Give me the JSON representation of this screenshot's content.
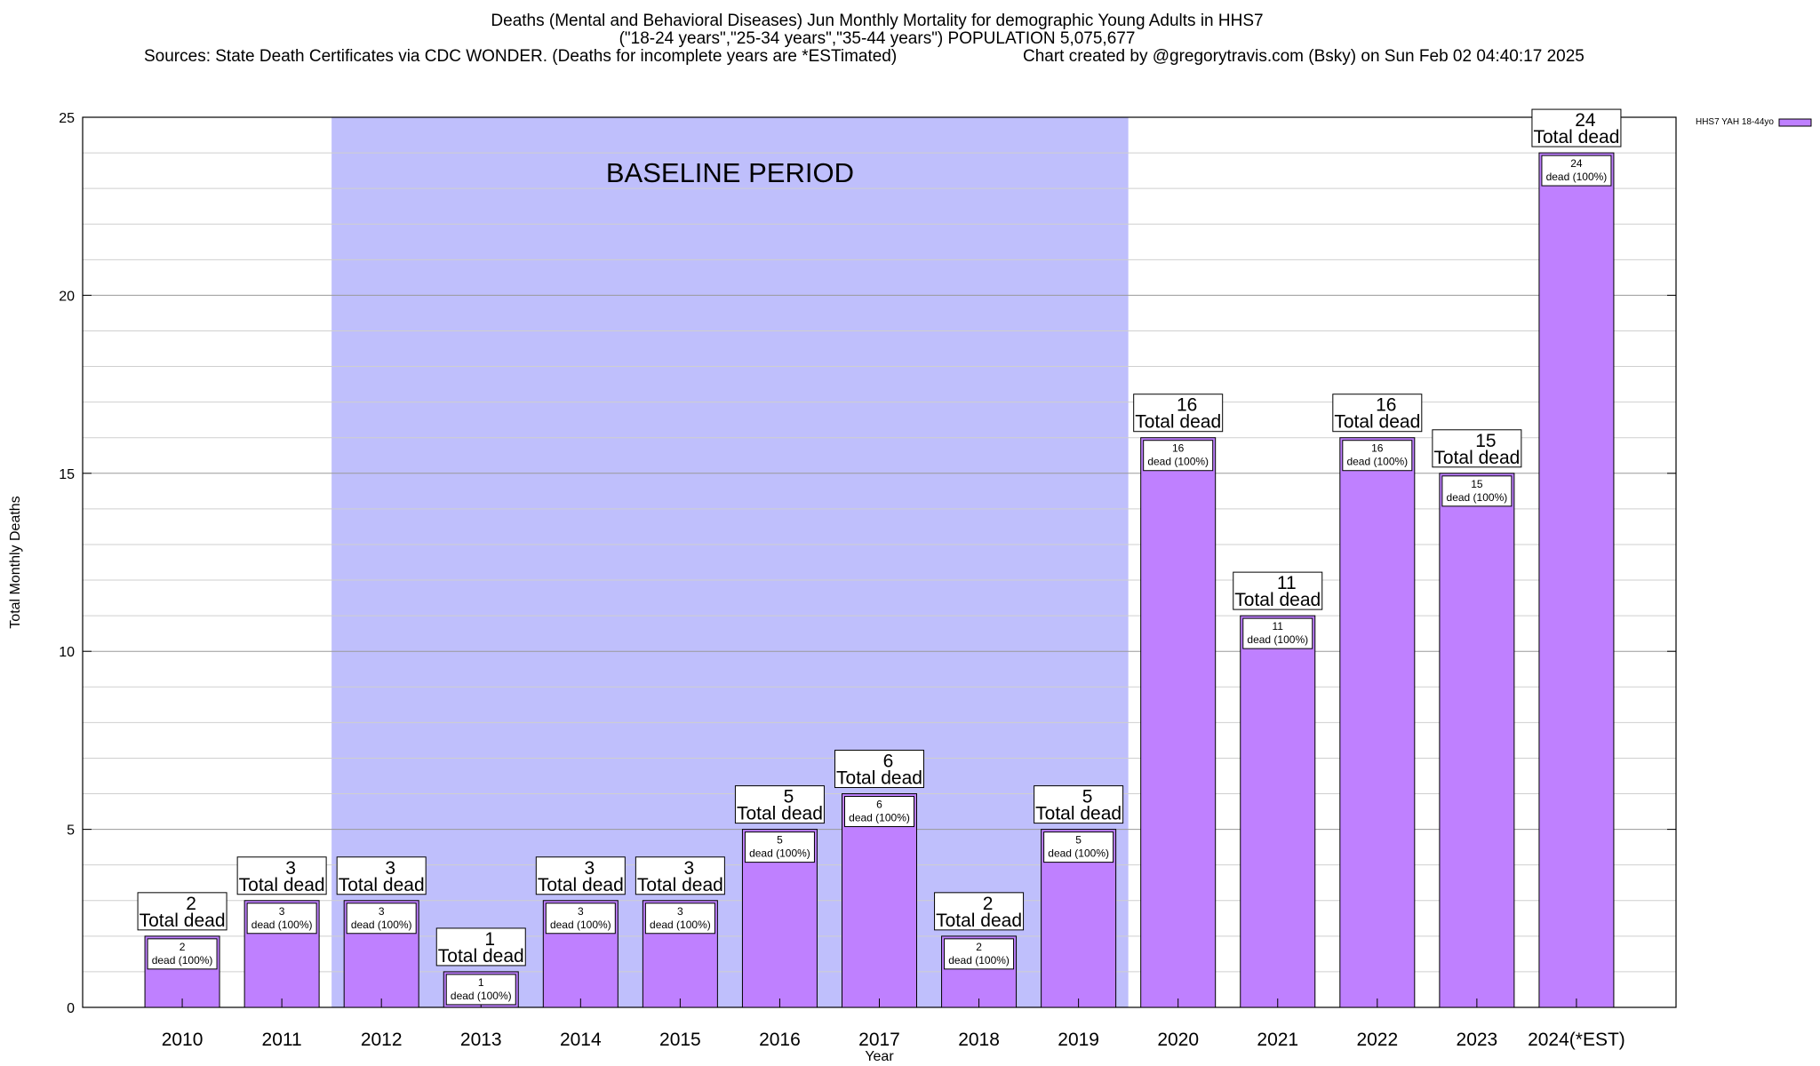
{
  "chart_data": {
    "type": "bar",
    "title": "Deaths (Mental and Behavioral Diseases) Jun Monthly Mortality for demographic Young Adults in HHS7",
    "subtitle": "(\"18-24 years\",\"25-34 years\",\"35-44 years\") POPULATION 5,075,677",
    "sources": "Sources: State Death Certificates via CDC WONDER. (Deaths for incomplete years are *ESTimated)",
    "credit": "Chart created by @gregorytravis.com (Bsky) on Sun Feb 02 04:40:17 2025",
    "xlabel": "Year",
    "ylabel": "Total Monthly Deaths",
    "ylim": [
      0,
      25
    ],
    "yticks": [
      0,
      5,
      10,
      15,
      20,
      25
    ],
    "grid": true,
    "categories": [
      "2010",
      "2011",
      "2012",
      "2013",
      "2014",
      "2015",
      "2016",
      "2017",
      "2018",
      "2019",
      "2020",
      "2021",
      "2022",
      "2023",
      "2024(*EST)"
    ],
    "series": [
      {
        "name": "HHS7 YAH 18-44yo",
        "color": "#bf80ff",
        "values": [
          2,
          3,
          3,
          1,
          3,
          3,
          5,
          6,
          2,
          5,
          16,
          11,
          16,
          15,
          24
        ]
      }
    ],
    "total_label": "Total dead",
    "bar_label": "dead (100%)",
    "baseline": {
      "label": "BASELINE PERIOD",
      "from": "2012",
      "to": "2019",
      "color": "#bfbffc"
    },
    "legend_position": "top-right"
  }
}
